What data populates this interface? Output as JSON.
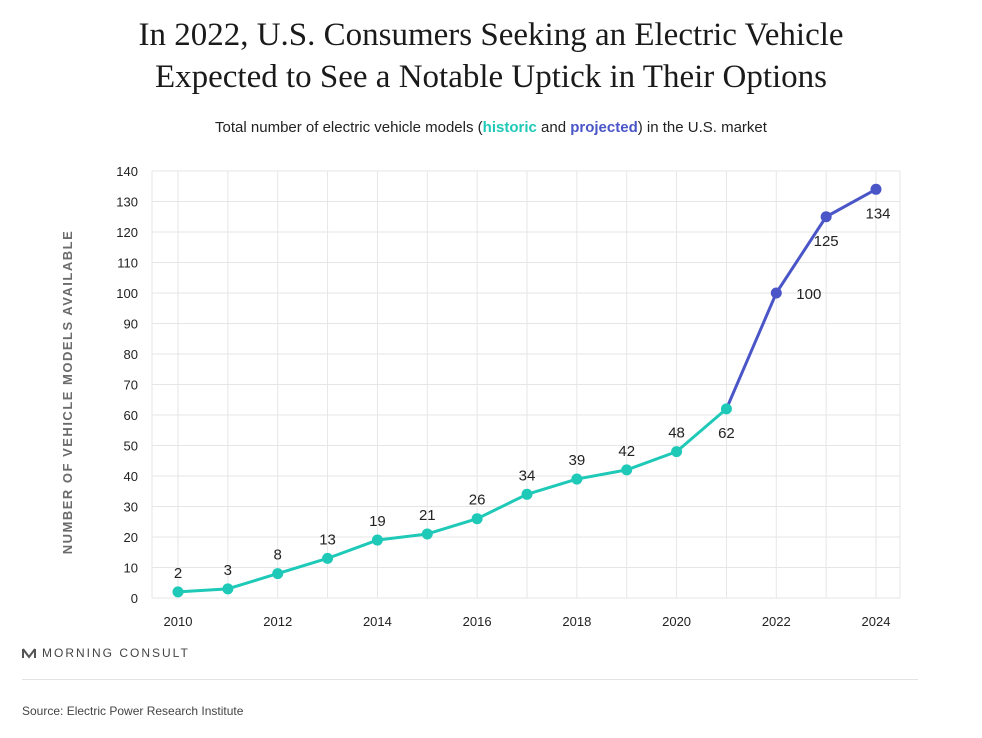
{
  "title_line1": "In 2022, U.S. Consumers Seeking an Electric Vehicle",
  "title_line2": "Expected to See a Notable Uptick in Their Options",
  "subtitle": {
    "before": "Total number of electric vehicle models (",
    "historic": "historic",
    "middle": " and ",
    "projected": "projected",
    "after": ") in the U.S. market"
  },
  "logo_text": "MORNING CONSULT",
  "source": "Source: Electric Power Research Institute",
  "colors": {
    "historic": "#1fc9b8",
    "projected": "#4a55c7",
    "grid": "#e6e6e6",
    "axis_label": "#6b6b6b"
  },
  "chart_data": {
    "type": "line",
    "title": "In 2022, U.S. Consumers Seeking an Electric Vehicle Expected to See a Notable Uptick in Their Options",
    "subtitle": "Total number of electric vehicle models (historic and projected) in the U.S. market",
    "xlabel": "",
    "ylabel": "NUMBER OF VEHICLE MODELS AVAILABLE",
    "x": [
      2010,
      2011,
      2012,
      2013,
      2014,
      2015,
      2016,
      2017,
      2018,
      2019,
      2020,
      2021,
      2022,
      2023,
      2024
    ],
    "xticks": [
      2010,
      2012,
      2014,
      2016,
      2018,
      2020,
      2022,
      2024
    ],
    "yticks": [
      0,
      10,
      20,
      30,
      40,
      50,
      60,
      70,
      80,
      90,
      100,
      110,
      120,
      130,
      140
    ],
    "ylim": [
      0,
      140
    ],
    "xlim": [
      2010,
      2024
    ],
    "grid": true,
    "series": [
      {
        "name": "historic",
        "x": [
          2010,
          2011,
          2012,
          2013,
          2014,
          2015,
          2016,
          2017,
          2018,
          2019,
          2020,
          2021
        ],
        "values": [
          2,
          3,
          8,
          13,
          19,
          21,
          26,
          34,
          39,
          42,
          48,
          62
        ]
      },
      {
        "name": "projected",
        "x": [
          2021,
          2022,
          2023,
          2024
        ],
        "values": [
          62,
          100,
          125,
          134
        ]
      }
    ],
    "data_labels": [
      {
        "x": 2010,
        "text": "2"
      },
      {
        "x": 2011,
        "text": "3"
      },
      {
        "x": 2012,
        "text": "8"
      },
      {
        "x": 2013,
        "text": "13"
      },
      {
        "x": 2014,
        "text": "19"
      },
      {
        "x": 2015,
        "text": "21"
      },
      {
        "x": 2016,
        "text": "26"
      },
      {
        "x": 2017,
        "text": "34"
      },
      {
        "x": 2018,
        "text": "39"
      },
      {
        "x": 2019,
        "text": "42"
      },
      {
        "x": 2020,
        "text": "48"
      },
      {
        "x": 2021,
        "text": "62"
      },
      {
        "x": 2022,
        "text": "100"
      },
      {
        "x": 2023,
        "text": "125"
      },
      {
        "x": 2024,
        "text": "134"
      }
    ]
  }
}
